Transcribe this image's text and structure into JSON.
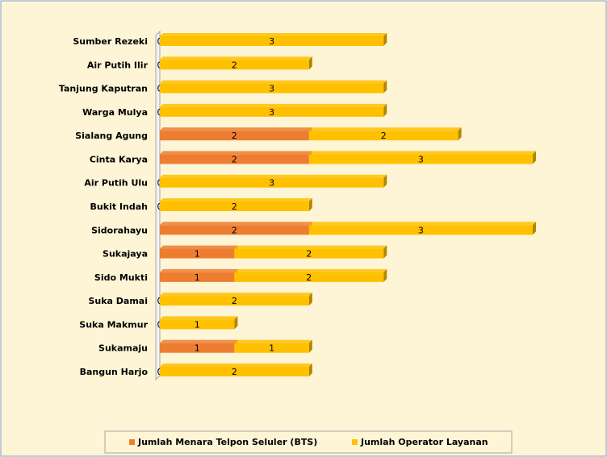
{
  "chart_data": {
    "type": "bar",
    "orientation": "horizontal",
    "stacked": true,
    "categories": [
      "Sumber Rezeki",
      "Air Putih Ilir",
      "Tanjung Kaputran",
      "Warga Mulya",
      "Sialang Agung",
      "Cinta Karya",
      "Air Putih Ulu",
      "Bukit Indah",
      "Sidorahayu",
      "Sukajaya",
      "Sido Mukti",
      "Suka Damai",
      "Suka Makmur",
      "Sukamaju",
      "Bangun Harjo"
    ],
    "series": [
      {
        "name": "Jumlah Menara Telpon Seluler (BTS)",
        "color": "#ed7d31",
        "values": [
          0,
          0,
          0,
          0,
          2,
          2,
          0,
          0,
          2,
          1,
          1,
          0,
          0,
          1,
          0
        ]
      },
      {
        "name": "Jumlah Operator Layanan",
        "color": "#ffc000",
        "values": [
          3,
          2,
          3,
          3,
          2,
          3,
          3,
          2,
          3,
          2,
          2,
          2,
          1,
          1,
          2
        ]
      }
    ],
    "legend": "bottom"
  }
}
